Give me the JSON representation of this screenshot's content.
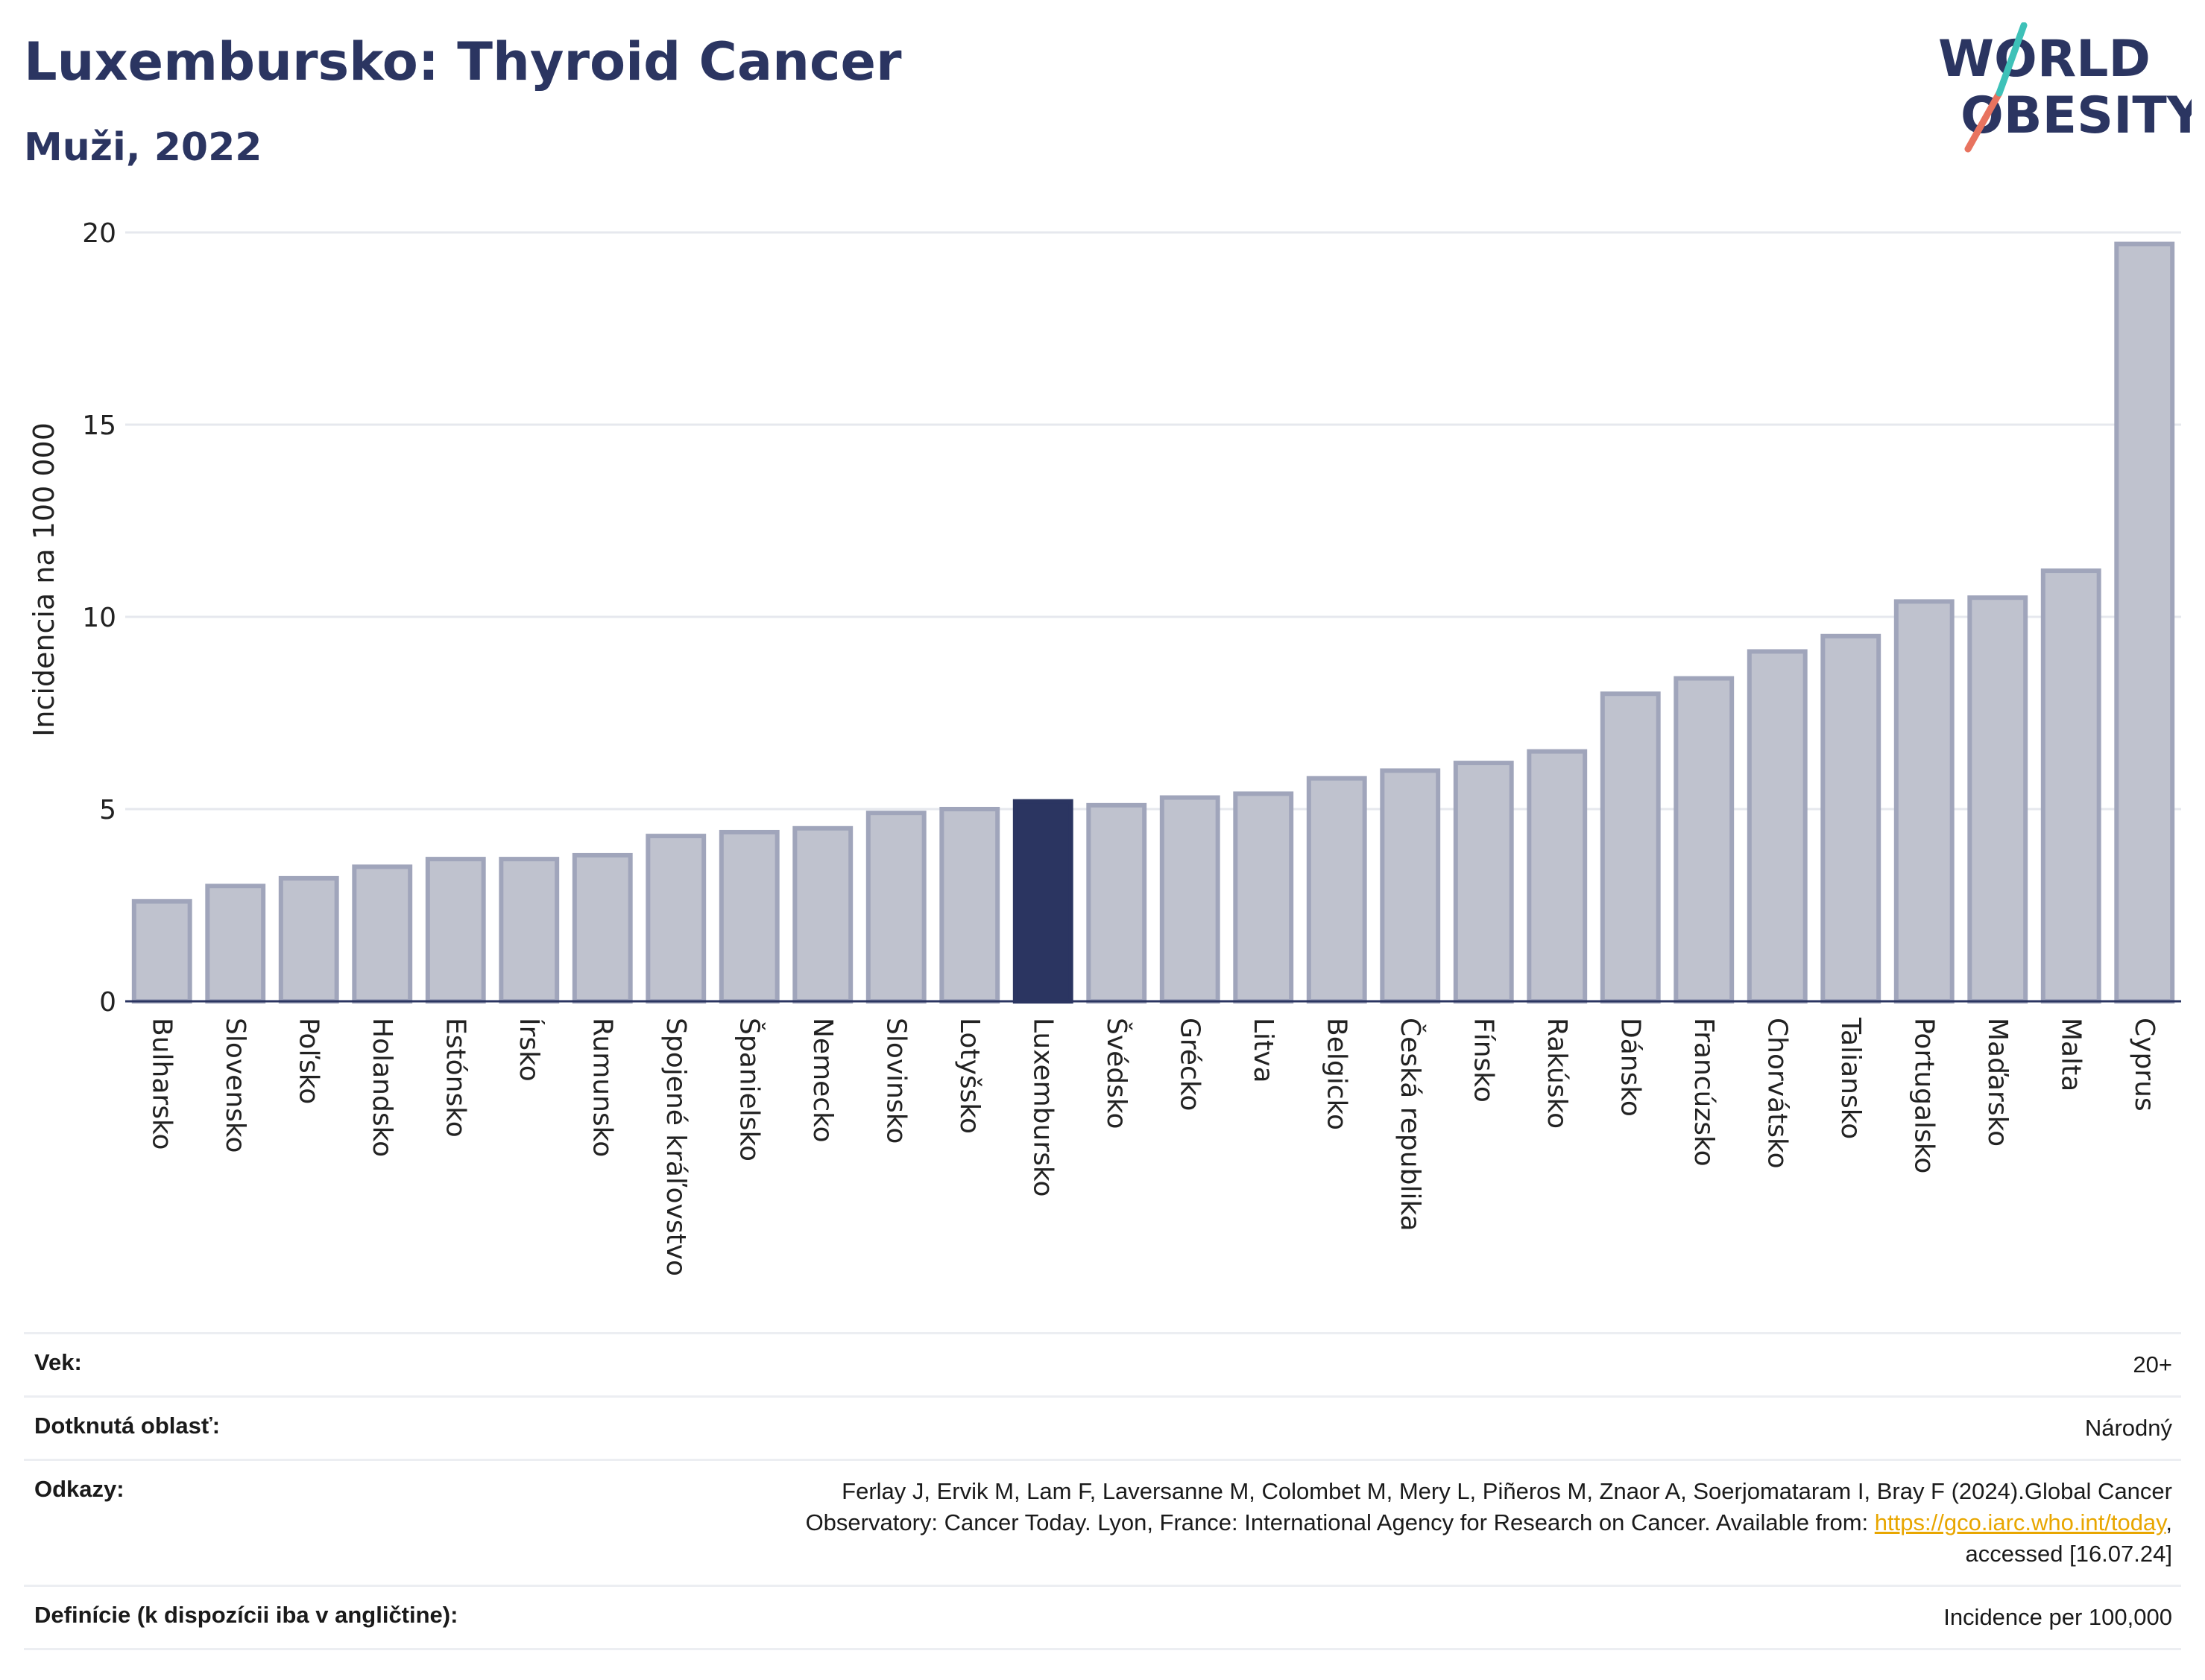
{
  "header": {
    "title": "Luxembursko: Thyroid Cancer",
    "subtitle": "Muži, 2022"
  },
  "logo": {
    "line1": "WORLD",
    "line2": "OBESITY"
  },
  "chart_data": {
    "type": "bar",
    "ylabel": "Incidencia na 100 000",
    "ylim": [
      0,
      20
    ],
    "yticks": [
      0,
      5,
      10,
      15,
      20
    ],
    "grid": true,
    "categories": [
      "Bulharsko",
      "Slovensko",
      "Poľsko",
      "Holandsko",
      "Estónsko",
      "Írsko",
      "Rumunsko",
      "Spojené kráľovstvo",
      "Španielsko",
      "Nemecko",
      "Slovinsko",
      "Lotyšsko",
      "Luxembursko",
      "Švédsko",
      "Grécko",
      "Litva",
      "Belgicko",
      "Česká republika",
      "Fínsko",
      "Rakúsko",
      "Dánsko",
      "Francúzsko",
      "Chorvátsko",
      "Taliansko",
      "Portugalsko",
      "Maďarsko",
      "Malta",
      "Cyprus"
    ],
    "values": [
      2.6,
      3.0,
      3.2,
      3.5,
      3.7,
      3.7,
      3.8,
      4.3,
      4.4,
      4.5,
      4.9,
      5.0,
      5.2,
      5.1,
      5.3,
      5.4,
      5.8,
      6.0,
      6.2,
      6.5,
      8.0,
      8.4,
      9.1,
      9.5,
      10.4,
      10.5,
      11.2,
      19.7
    ],
    "highlight": "Luxembursko",
    "colors": {
      "bar": "#bfc2ce",
      "bar_border": "#a0a5bb",
      "highlight": "#2b3561"
    }
  },
  "info": {
    "rows": [
      {
        "label": "Vek:",
        "value": "20+"
      },
      {
        "label": "Dotknutá oblasť:",
        "value": "Národný"
      },
      {
        "label": "Odkazy:",
        "value_line1": "Ferlay J, Ervik M, Lam F, Laversanne M, Colombet M, Mery L, Piñeros M, Znaor A, Soerjomataram I, Bray F (2024).Global Cancer",
        "value_line2_pre": "Observatory: Cancer Today. Lyon, France: International Agency for Research on Cancer. Available from: ",
        "link": "https://gco.iarc.who.int/today",
        "value_line2_post": ",",
        "value_line3": "accessed [16.07.24]"
      },
      {
        "label": "Definície (k dispozícii iba v angličtine):",
        "value": "Incidence per 100,000"
      }
    ]
  }
}
